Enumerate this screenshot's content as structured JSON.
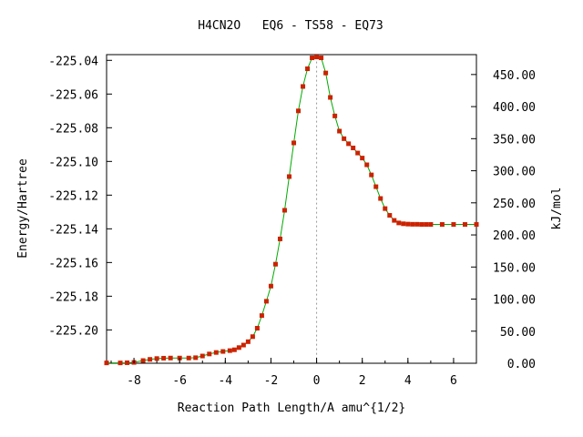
{
  "chart_data": {
    "type": "line",
    "title": "H4CN2O   EQ6 - TS58 - EQ73",
    "xlabel": "Reaction Path Length/A amu^{1/2}",
    "ylabel": "Energy/Hartree",
    "y2label": "kJ/mol",
    "xlim": [
      -9.2,
      7.0
    ],
    "ylim": [
      -225.2198,
      -225.0366
    ],
    "y2lim": [
      0.0,
      481.0
    ],
    "xticks": [
      -8,
      -6,
      -4,
      -2,
      0,
      2,
      4,
      6
    ],
    "yticks": [
      -225.04,
      -225.06,
      -225.08,
      -225.1,
      -225.12,
      -225.14,
      -225.16,
      -225.18,
      -225.2
    ],
    "ytick_labels": [
      "-225.04",
      "-225.06",
      "-225.08",
      "-225.10",
      "-225.12",
      "-225.14",
      "-225.16",
      "-225.18",
      "-225.20"
    ],
    "y2ticks": [
      0,
      50,
      100,
      150,
      200,
      250,
      300,
      350,
      400,
      450
    ],
    "y2tick_labels": [
      "0.00",
      "50.00",
      "100.00",
      "150.00",
      "200.00",
      "250.00",
      "300.00",
      "350.00",
      "400.00",
      "450.00"
    ],
    "ts_marker_x": 0.0,
    "colors": {
      "line": "#00aa00",
      "points": "#cc2200",
      "ts_line": "#999999",
      "axis": "#000000"
    },
    "x": [
      -9.2,
      -8.6,
      -8.3,
      -8.0,
      -7.6,
      -7.3,
      -7.0,
      -6.7,
      -6.4,
      -6.0,
      -5.6,
      -5.3,
      -5.0,
      -4.7,
      -4.4,
      -4.1,
      -3.8,
      -3.6,
      -3.4,
      -3.2,
      -3.0,
      -2.8,
      -2.6,
      -2.4,
      -2.2,
      -2.0,
      -1.8,
      -1.6,
      -1.4,
      -1.2,
      -1.0,
      -0.8,
      -0.6,
      -0.4,
      -0.2,
      0.0,
      0.2,
      0.4,
      0.6,
      0.8,
      1.0,
      1.2,
      1.4,
      1.6,
      1.8,
      2.0,
      2.2,
      2.4,
      2.6,
      2.8,
      3.0,
      3.2,
      3.4,
      3.6,
      3.8,
      4.0,
      4.2,
      4.4,
      4.6,
      4.8,
      5.0,
      5.5,
      6.0,
      6.5,
      7.0
    ],
    "y": [
      -225.2196,
      -225.2196,
      -225.2195,
      -225.2193,
      -225.2182,
      -225.2175,
      -225.217,
      -225.2168,
      -225.2167,
      -225.2167,
      -225.2167,
      -225.2165,
      -225.2155,
      -225.2143,
      -225.2134,
      -225.2128,
      -225.2123,
      -225.2118,
      -225.2105,
      -225.209,
      -225.207,
      -225.204,
      -225.199,
      -225.1915,
      -225.183,
      -225.174,
      -225.161,
      -225.146,
      -225.129,
      -225.109,
      -225.089,
      -225.07,
      -225.0555,
      -225.045,
      -225.0385,
      -225.038,
      -225.0385,
      -225.0475,
      -225.062,
      -225.073,
      -225.082,
      -225.0865,
      -225.0895,
      -225.092,
      -225.095,
      -225.098,
      -225.102,
      -225.108,
      -225.115,
      -225.122,
      -225.128,
      -225.132,
      -225.135,
      -225.1365,
      -225.137,
      -225.1372,
      -225.1373,
      -225.1373,
      -225.1374,
      -225.1374,
      -225.1374,
      -225.1374,
      -225.1374,
      -225.1374,
      -225.1374
    ]
  }
}
